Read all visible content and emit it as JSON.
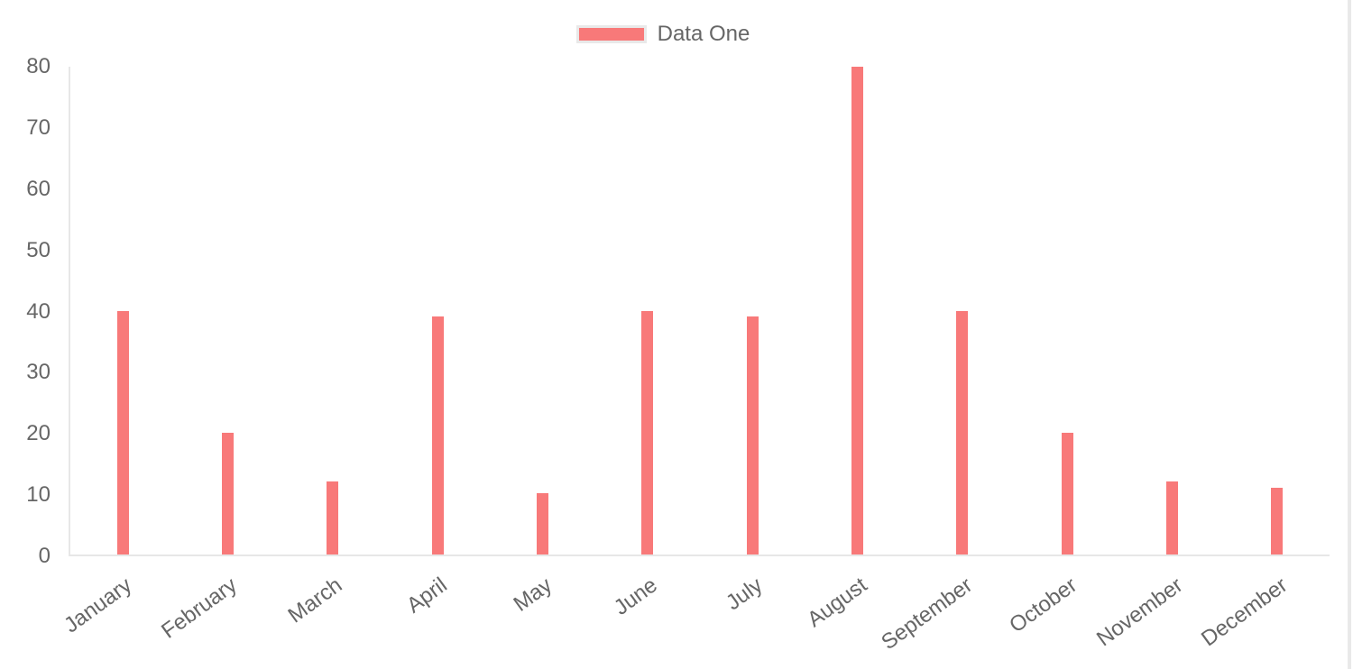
{
  "chart_data": {
    "type": "bar",
    "title": "",
    "categories": [
      "January",
      "February",
      "March",
      "April",
      "May",
      "June",
      "July",
      "August",
      "September",
      "October",
      "November",
      "December"
    ],
    "series": [
      {
        "name": "Data One",
        "color": "#f87979",
        "values": [
          40,
          20,
          12,
          39,
          10,
          40,
          39,
          80,
          40,
          20,
          12,
          11
        ]
      }
    ],
    "xlabel": "",
    "ylabel": "",
    "ylim": [
      0,
      80
    ],
    "yticks": [
      0,
      10,
      20,
      30,
      40,
      50,
      60,
      70,
      80
    ],
    "grid": false,
    "legend_position": "top",
    "x_label_rotation_deg": -36
  },
  "legend": {
    "label": "Data One"
  },
  "colors": {
    "bar": "#f87979",
    "axis": "#e7e7e7",
    "tick_text": "#666666",
    "legend_swatch_border": "#e9e9e9"
  }
}
